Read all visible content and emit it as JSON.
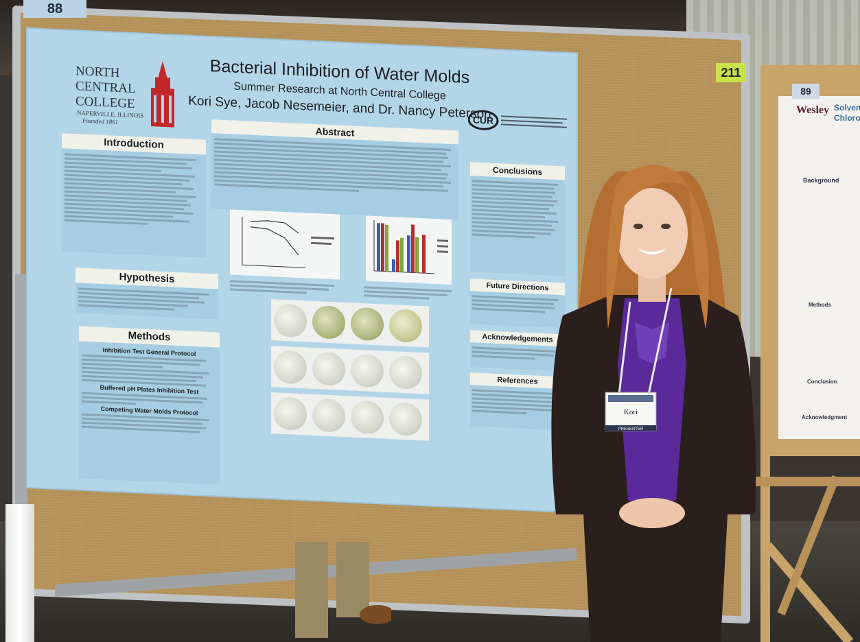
{
  "labels": {
    "board_number_left": "88",
    "board_number_center": "211",
    "board_number_right": "89"
  },
  "poster": {
    "logo_text": "NORTH CENTRAL COLLEGE",
    "logo_location": "NAPERVILLE, ILLINOIS",
    "logo_founded": "Founded 1861",
    "title": "Bacterial Inhibition of Water Molds",
    "subtitle": "Summer Research at North Central College",
    "authors": "Kori Sye, Jacob Nesemeier, and Dr. Nancy Peterson",
    "cur_logo": "CUR",
    "sections": {
      "abstract": "Abstract",
      "introduction": "Introduction",
      "hypothesis": "Hypothesis",
      "methods": "Methods",
      "conclusions": "Conclusions",
      "future_directions": "Future Directions",
      "acknowledgements": "Acknowledgements",
      "references": "References"
    },
    "methods_subheads": [
      "Inhibition Test General Protocol",
      "Buffered pH Plates Inhibition Test",
      "Competing Water Molds Protocol"
    ]
  },
  "right_poster": {
    "logo": "Wesley",
    "title_fragment": "Solvent Chlorofo",
    "sections": [
      "Background",
      "Methods",
      "Conclusion",
      "Acknowledgment"
    ]
  },
  "badge": {
    "name": "Kori",
    "role": "PRESENTER"
  },
  "colors": {
    "poster_bg": "#b3d5e8",
    "cork": "#b8955c",
    "blazer": "#2a1f1c",
    "blouse": "#5a2a9a",
    "hair": "#c07a3a"
  }
}
